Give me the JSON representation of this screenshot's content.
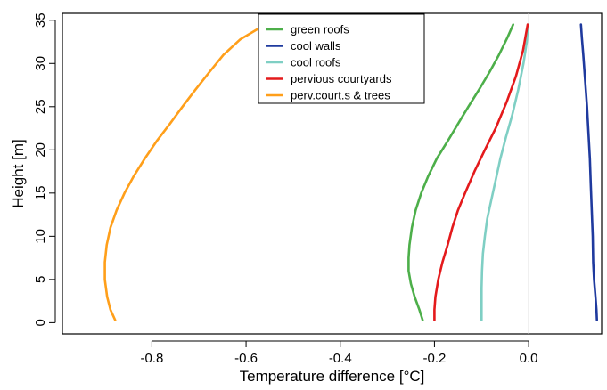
{
  "chart_data": {
    "type": "line",
    "title": "",
    "xlabel": "Temperature difference [°C]",
    "ylabel": "Height [m]",
    "xlim": [
      -0.99,
      0.155
    ],
    "ylim": [
      -1.3,
      35.8
    ],
    "x_ticks": [
      -0.8,
      -0.6,
      -0.4,
      -0.2,
      0.0
    ],
    "x_tick_labels": [
      "-0.8",
      "-0.6",
      "-0.4",
      "-0.2",
      "0.0"
    ],
    "y_ticks": [
      0,
      5,
      10,
      15,
      20,
      25,
      30,
      35
    ],
    "y_tick_labels": [
      "0",
      "5",
      "10",
      "15",
      "20",
      "25",
      "30",
      "35"
    ],
    "reference_line_x": 0.0,
    "grid": false,
    "legend_position": "top-center",
    "series": [
      {
        "name": "green roofs",
        "color": "#4daf4a",
        "points": [
          [
            -0.225,
            0.3
          ],
          [
            -0.232,
            1.5
          ],
          [
            -0.242,
            3
          ],
          [
            -0.25,
            4.5
          ],
          [
            -0.255,
            6
          ],
          [
            -0.255,
            7.5
          ],
          [
            -0.253,
            9
          ],
          [
            -0.248,
            11
          ],
          [
            -0.24,
            13
          ],
          [
            -0.228,
            15
          ],
          [
            -0.213,
            17
          ],
          [
            -0.195,
            19
          ],
          [
            -0.172,
            21
          ],
          [
            -0.15,
            23
          ],
          [
            -0.128,
            25
          ],
          [
            -0.105,
            27
          ],
          [
            -0.083,
            29
          ],
          [
            -0.063,
            31
          ],
          [
            -0.045,
            33
          ],
          [
            -0.033,
            34.5
          ]
        ]
      },
      {
        "name": "cool walls",
        "color": "#1f3a9e",
        "points": [
          [
            0.145,
            0.3
          ],
          [
            0.144,
            1.5
          ],
          [
            0.142,
            3
          ],
          [
            0.139,
            5
          ],
          [
            0.137,
            7
          ],
          [
            0.136,
            10
          ],
          [
            0.134,
            13
          ],
          [
            0.132,
            16
          ],
          [
            0.13,
            19
          ],
          [
            0.127,
            22
          ],
          [
            0.124,
            25
          ],
          [
            0.12,
            28
          ],
          [
            0.116,
            31
          ],
          [
            0.113,
            33
          ],
          [
            0.111,
            34.5
          ]
        ]
      },
      {
        "name": "cool roofs",
        "color": "#7fcfc4",
        "points": [
          [
            -0.1,
            0.3
          ],
          [
            -0.1,
            2
          ],
          [
            -0.1,
            4
          ],
          [
            -0.099,
            6
          ],
          [
            -0.097,
            8
          ],
          [
            -0.093,
            10
          ],
          [
            -0.088,
            12
          ],
          [
            -0.08,
            14
          ],
          [
            -0.07,
            16.5
          ],
          [
            -0.06,
            19
          ],
          [
            -0.048,
            21.5
          ],
          [
            -0.035,
            24
          ],
          [
            -0.022,
            27
          ],
          [
            -0.011,
            30
          ],
          [
            -0.004,
            32.5
          ],
          [
            -0.001,
            34.5
          ]
        ]
      },
      {
        "name": "pervious courtyards",
        "color": "#e41a1c",
        "points": [
          [
            -0.2,
            0.3
          ],
          [
            -0.2,
            1.5
          ],
          [
            -0.198,
            3
          ],
          [
            -0.192,
            5
          ],
          [
            -0.183,
            7
          ],
          [
            -0.172,
            9
          ],
          [
            -0.162,
            11
          ],
          [
            -0.15,
            13
          ],
          [
            -0.135,
            15
          ],
          [
            -0.115,
            17.5
          ],
          [
            -0.093,
            20
          ],
          [
            -0.07,
            22.5
          ],
          [
            -0.047,
            25.5
          ],
          [
            -0.027,
            28.5
          ],
          [
            -0.012,
            31.5
          ],
          [
            -0.002,
            34.5
          ]
        ]
      },
      {
        "name": "perv.court.s & trees",
        "color": "#ff9f1a",
        "points": [
          [
            -0.878,
            0.3
          ],
          [
            -0.888,
            1.5
          ],
          [
            -0.895,
            3
          ],
          [
            -0.9,
            5
          ],
          [
            -0.9,
            7
          ],
          [
            -0.896,
            9
          ],
          [
            -0.888,
            11
          ],
          [
            -0.875,
            13
          ],
          [
            -0.858,
            15
          ],
          [
            -0.838,
            17
          ],
          [
            -0.815,
            19
          ],
          [
            -0.79,
            21
          ],
          [
            -0.762,
            23
          ],
          [
            -0.735,
            25
          ],
          [
            -0.707,
            27
          ],
          [
            -0.678,
            29
          ],
          [
            -0.648,
            31
          ],
          [
            -0.612,
            32.8
          ],
          [
            -0.575,
            34
          ],
          [
            -0.56,
            34.5
          ]
        ]
      }
    ]
  }
}
